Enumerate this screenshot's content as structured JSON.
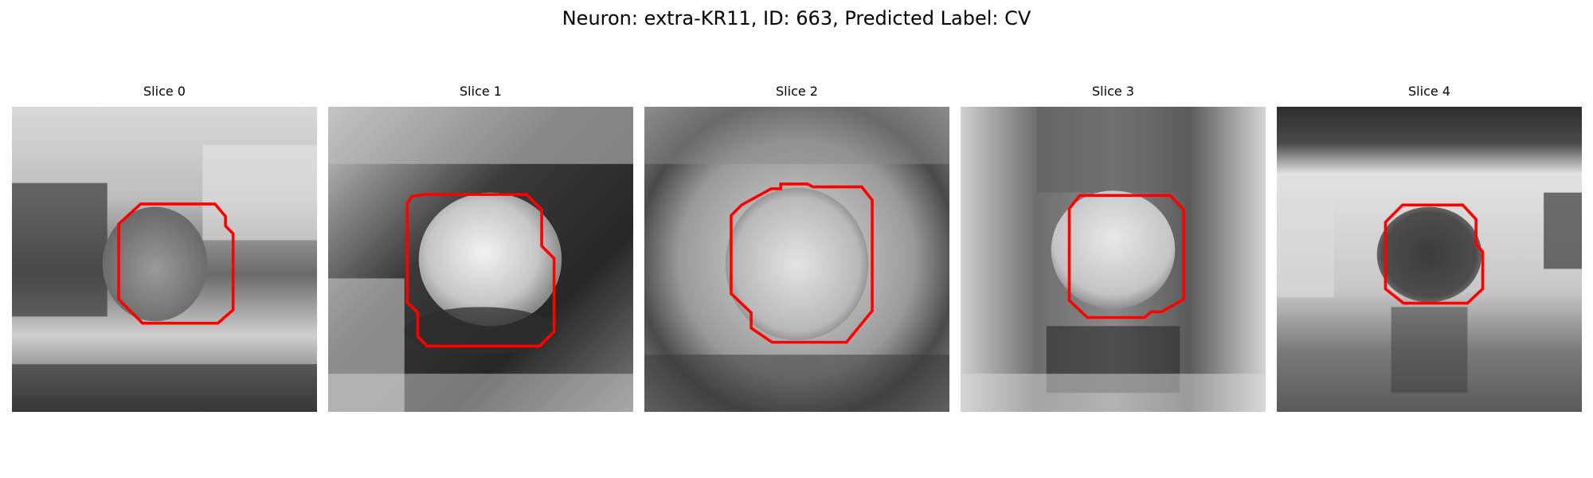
{
  "figure": {
    "title": "Neuron: extra-KR11, ID: 663, Predicted Label: CV"
  },
  "colors": {
    "contour": "#ff0000",
    "background": "#ffffff"
  },
  "panels": [
    {
      "title": "Slice 0"
    },
    {
      "title": "Slice 1"
    },
    {
      "title": "Slice 2"
    },
    {
      "title": "Slice 3"
    },
    {
      "title": "Slice 4"
    }
  ]
}
